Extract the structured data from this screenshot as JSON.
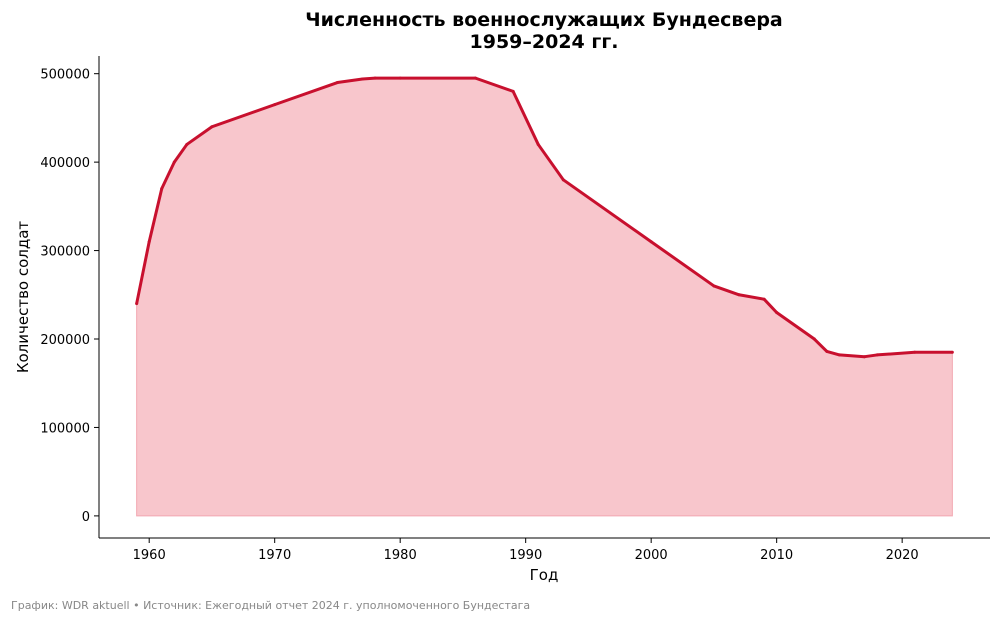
{
  "chart_data": {
    "type": "area",
    "title": "Численность военнослужащих Бундесвера",
    "subtitle": "1959–2024 гг.",
    "xlabel": "Год",
    "ylabel": "Количество солдат",
    "xlim": [
      1956,
      2027
    ],
    "ylim": [
      -25000,
      520000
    ],
    "xticks": [
      1960,
      1970,
      1980,
      1990,
      2000,
      2010,
      2020
    ],
    "yticks": [
      0,
      100000,
      200000,
      300000,
      400000,
      500000
    ],
    "grid": false,
    "line_color": "#c8102e",
    "fill_color": "#f8c6cc",
    "series": [
      {
        "x": [
          1959,
          1960,
          1961,
          1962,
          1963,
          1965,
          1970,
          1975,
          1977,
          1978,
          1980,
          1986,
          1989,
          1991,
          1993,
          2000,
          2005,
          2007,
          2009,
          2010,
          2013,
          2014,
          2015,
          2017,
          2018,
          2021,
          2024
        ],
        "y": [
          240000,
          310000,
          370000,
          400000,
          420000,
          440000,
          465000,
          490000,
          494000,
          495000,
          495000,
          495000,
          480000,
          420000,
          380000,
          310000,
          260000,
          250000,
          245000,
          230000,
          200000,
          186000,
          182000,
          180000,
          182000,
          185000,
          185000
        ]
      }
    ]
  },
  "footer": "График: WDR aktuell • Источник: Ежегодный отчет 2024 г. уполномоченного Бундестага"
}
